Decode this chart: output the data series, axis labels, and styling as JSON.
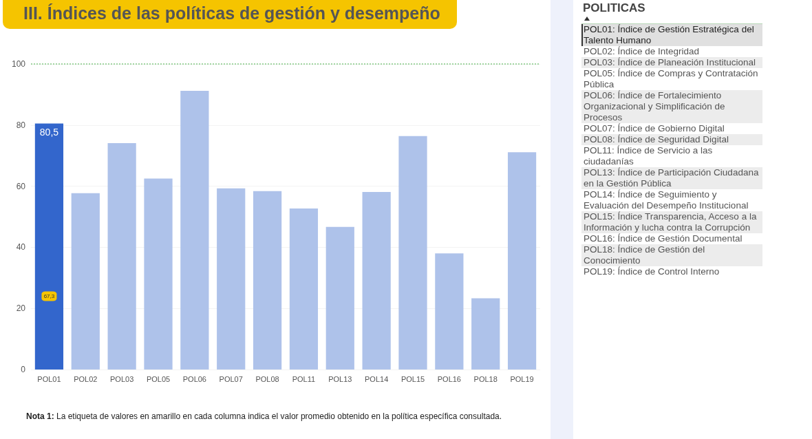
{
  "chart_data": {
    "type": "bar",
    "title": "III. Índices de las políticas de gestión y desempeño",
    "categories": [
      "POL01",
      "POL02",
      "POL03",
      "POL05",
      "POL06",
      "POL07",
      "POL08",
      "POL11",
      "POL13",
      "POL14",
      "POL15",
      "POL16",
      "POL18",
      "POL19"
    ],
    "values": [
      80.5,
      57.7,
      74.1,
      62.5,
      91.2,
      59.3,
      58.4,
      52.7,
      46.7,
      58.1,
      76.4,
      38.0,
      23.3,
      71.1
    ],
    "colors": [
      "#3366cc",
      "#aec2ea",
      "#aec2ea",
      "#aec2ea",
      "#aec2ea",
      "#aec2ea",
      "#aec2ea",
      "#aec2ea",
      "#aec2ea",
      "#aec2ea",
      "#aec2ea",
      "#aec2ea",
      "#aec2ea",
      "#aec2ea"
    ],
    "value_labels": [
      "80,5",
      null,
      null,
      null,
      null,
      null,
      null,
      null,
      null,
      null,
      null,
      null,
      null,
      null
    ],
    "ylim": [
      0,
      100
    ],
    "yticks": [
      0,
      20,
      40,
      60,
      80,
      100
    ],
    "grid": "y",
    "ref_lines": [
      {
        "axis": "y",
        "value": 100,
        "color": "#9fd49f",
        "line_style": "dotted"
      }
    ],
    "annotations": [
      {
        "text": "67,3",
        "x": "POL01",
        "y": 24
      },
      "Nota 1: La etiqueta de valores en amarillo en cada columna indica el valor promedio obtenido en la política específica consultada.",
      "POLITICAS",
      "POL01: Índice de Gestión Estratégica del Talento Humano",
      "POL02: Índice de Integridad",
      "POL03: Índice de Planeación Institucional",
      "POL05: Índice de Compras y Contratación Pública",
      "POL06: Índice de Fortalecimiento Organizacional y Simplificación de Procesos",
      "POL07: Índice de Gobierno Digital",
      "POL08: Índice de Seguridad Digital",
      "POL11: Índice de Servicio a las ciudadanías",
      "POL13: Índice de Participación Ciudadana en la Gestión Pública",
      "POL14: Índice de Seguimiento y Evaluación del Desempeño Institucional",
      "POL15: Índice Transparencia, Acceso a la Información y lucha contra la Corrupción",
      "POL16: Índice de Gestión Documental",
      "POL18: Índice de Gestión del Conocimiento",
      "POL19: Índice de Control Interno"
    ]
  }
}
